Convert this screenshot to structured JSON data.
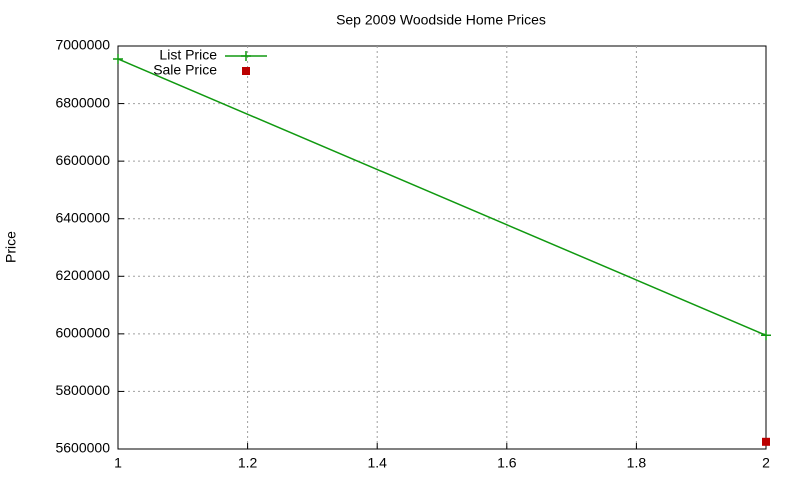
{
  "chart_data": {
    "type": "line",
    "title": "Sep 2009 Woodside Home Prices",
    "y_label": "Price",
    "x": [
      1,
      2
    ],
    "series": [
      {
        "name": "List Price",
        "color": "#109910",
        "marker": "plus",
        "values": [
          6955000,
          5995000
        ]
      },
      {
        "name": "Sale Price",
        "color": "#bb0000",
        "marker": "square",
        "values": [
          null,
          5625000
        ]
      }
    ],
    "xlim": [
      1,
      2
    ],
    "xticks": [
      1,
      1.2,
      1.4,
      1.6,
      1.8,
      2
    ],
    "ylim": [
      5600000,
      7000000
    ],
    "yticks": [
      5600000,
      5800000,
      6000000,
      6200000,
      6400000,
      6600000,
      6800000,
      7000000
    ],
    "grid": true,
    "legend": "top-left"
  }
}
